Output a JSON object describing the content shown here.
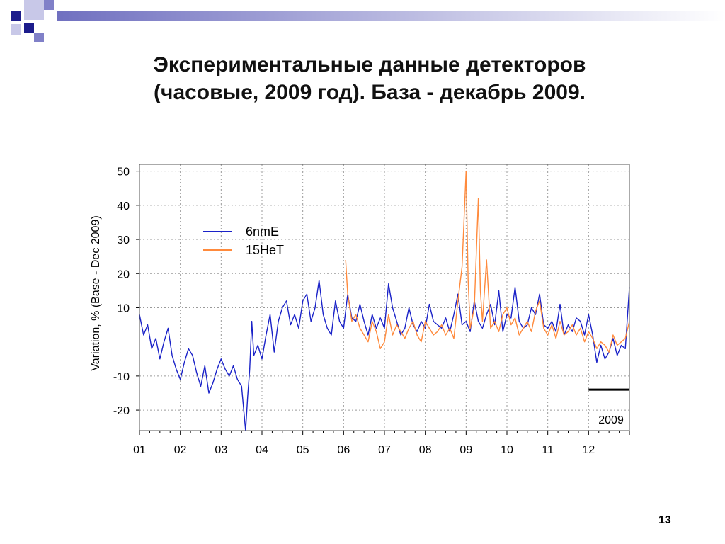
{
  "slide": {
    "title_line1": "Экспериментальные данные детекторов",
    "title_line2": "(часовые, 2009 год). База - декабрь 2009.",
    "page_number": "13"
  },
  "colors": {
    "header_dark": "#1c1c8c",
    "header_mid": "#8080c8",
    "header_light": "#c8c8e8",
    "series_6nmE": "#1a22c8",
    "series_15HeT": "#ff8a3c",
    "base_line": "#000000",
    "grid": "#9a9a9a"
  },
  "chart_data": {
    "type": "line",
    "title": "",
    "xlabel": "",
    "ylabel": "Variation, %   (Base - Dec 2009)",
    "ylim": [
      -26,
      52
    ],
    "xlim": [
      1,
      13
    ],
    "yticks": [
      50,
      40,
      30,
      20,
      10,
      -10,
      -20
    ],
    "ytick_labels": [
      "50",
      "40",
      "30",
      "20",
      "10",
      "-10",
      "-20"
    ],
    "xticks": [
      1,
      2,
      3,
      4,
      5,
      6,
      7,
      8,
      9,
      10,
      11,
      12
    ],
    "xtick_labels": [
      "01",
      "02",
      "03",
      "04",
      "05",
      "06",
      "07",
      "08",
      "09",
      "10",
      "11",
      "12"
    ],
    "grid": true,
    "legend_position": "top-left",
    "annotation": "2009",
    "base_period": [
      12.0,
      13.0
    ],
    "base_value": -14,
    "series": [
      {
        "name": "6nmE",
        "color": "#1a22c8",
        "x": [
          1.0,
          1.1,
          1.2,
          1.3,
          1.4,
          1.5,
          1.6,
          1.7,
          1.8,
          1.9,
          2.0,
          2.1,
          2.2,
          2.3,
          2.4,
          2.5,
          2.6,
          2.7,
          2.8,
          2.9,
          3.0,
          3.1,
          3.2,
          3.3,
          3.4,
          3.5,
          3.6,
          3.65,
          3.7,
          3.75,
          3.8,
          3.9,
          4.0,
          4.1,
          4.2,
          4.3,
          4.4,
          4.5,
          4.6,
          4.7,
          4.8,
          4.9,
          5.0,
          5.1,
          5.2,
          5.3,
          5.4,
          5.5,
          5.6,
          5.7,
          5.8,
          5.9,
          6.0,
          6.1,
          6.2,
          6.3,
          6.4,
          6.5,
          6.6,
          6.7,
          6.8,
          6.9,
          7.0,
          7.1,
          7.2,
          7.3,
          7.4,
          7.5,
          7.6,
          7.7,
          7.8,
          7.9,
          8.0,
          8.1,
          8.2,
          8.3,
          8.4,
          8.5,
          8.6,
          8.7,
          8.8,
          8.9,
          9.0,
          9.1,
          9.2,
          9.3,
          9.4,
          9.5,
          9.6,
          9.7,
          9.8,
          9.9,
          10.0,
          10.1,
          10.2,
          10.3,
          10.4,
          10.5,
          10.6,
          10.7,
          10.8,
          10.9,
          11.0,
          11.1,
          11.2,
          11.3,
          11.4,
          11.5,
          11.6,
          11.7,
          11.8,
          11.9,
          12.0,
          12.1,
          12.2,
          12.3,
          12.4,
          12.5,
          12.6,
          12.7,
          12.8,
          12.9,
          13.0
        ],
        "values": [
          8,
          2,
          5,
          -2,
          1,
          -5,
          0,
          4,
          -4,
          -8,
          -11,
          -6,
          -2,
          -4,
          -9,
          -13,
          -7,
          -15,
          -12,
          -8,
          -5,
          -8,
          -10,
          -7,
          -11,
          -13,
          -26,
          -16,
          -8,
          6,
          -4,
          -1,
          -5,
          2,
          8,
          -3,
          6,
          10,
          12,
          5,
          8,
          4,
          12,
          14,
          6,
          10,
          18,
          8,
          4,
          2,
          12,
          6,
          4,
          14,
          7,
          6,
          11,
          6,
          2,
          8,
          4,
          7,
          4,
          17,
          10,
          6,
          2,
          4,
          10,
          5,
          3,
          6,
          4,
          11,
          6,
          5,
          4,
          7,
          3,
          8,
          14,
          5,
          6,
          3,
          12,
          6,
          4,
          8,
          11,
          5,
          15,
          3,
          8,
          7,
          16,
          6,
          4,
          5,
          10,
          8,
          14,
          5,
          4,
          6,
          3,
          11,
          2,
          5,
          3,
          7,
          6,
          2,
          8,
          2,
          -6,
          -1,
          -5,
          -3,
          1,
          -4,
          -1,
          -2,
          16
        ]
      },
      {
        "name": "15HeT",
        "color": "#ff8a3c",
        "x": [
          6.05,
          6.1,
          6.2,
          6.3,
          6.4,
          6.5,
          6.6,
          6.7,
          6.8,
          6.9,
          7.0,
          7.1,
          7.2,
          7.3,
          7.4,
          7.5,
          7.6,
          7.7,
          7.8,
          7.9,
          8.0,
          8.1,
          8.2,
          8.3,
          8.4,
          8.5,
          8.6,
          8.7,
          8.8,
          8.9,
          9.0,
          9.05,
          9.1,
          9.2,
          9.3,
          9.35,
          9.4,
          9.5,
          9.6,
          9.7,
          9.8,
          9.9,
          10.0,
          10.1,
          10.2,
          10.3,
          10.4,
          10.5,
          10.6,
          10.7,
          10.8,
          10.9,
          11.0,
          11.1,
          11.2,
          11.3,
          11.4,
          11.5,
          11.6,
          11.7,
          11.8,
          11.9,
          12.0,
          12.1,
          12.2,
          12.3,
          12.4,
          12.5,
          12.6,
          12.7,
          12.8,
          12.9,
          13.0
        ],
        "values": [
          24,
          14,
          6,
          8,
          4,
          2,
          0,
          6,
          3,
          -2,
          0,
          8,
          2,
          5,
          3,
          1,
          4,
          6,
          2,
          0,
          6,
          4,
          2,
          3,
          5,
          2,
          4,
          1,
          12,
          22,
          50,
          18,
          4,
          10,
          42,
          15,
          6,
          24,
          4,
          6,
          3,
          8,
          10,
          5,
          7,
          2,
          4,
          6,
          3,
          9,
          12,
          4,
          2,
          5,
          1,
          6,
          2,
          3,
          5,
          2,
          4,
          0,
          3,
          1,
          -2,
          0,
          -1,
          -3,
          2,
          -1,
          0,
          1,
          6
        ]
      }
    ]
  }
}
